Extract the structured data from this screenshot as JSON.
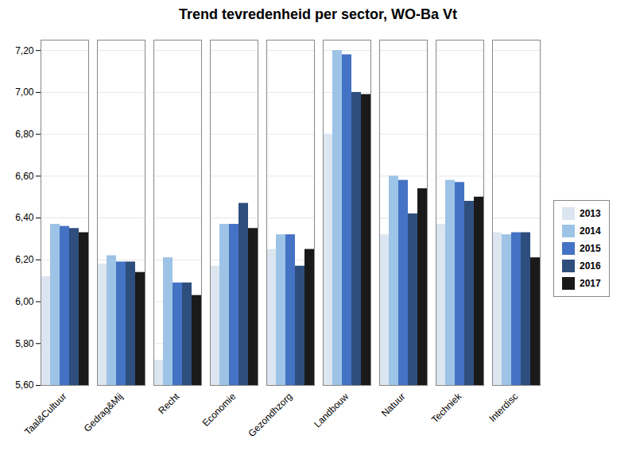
{
  "chart_data": {
    "type": "bar",
    "title": "Trend tevredenheid per sector, WO-Ba Vt",
    "categories": [
      "Taal&Cultuur",
      "Gedrag&Mij",
      "Recht",
      "Economie",
      "Gezondhzorg",
      "Landbouw",
      "Natuur",
      "Techniek",
      "Interdisc"
    ],
    "series": [
      {
        "name": "2013",
        "color": "#dce6f1",
        "values": [
          6.12,
          6.18,
          5.72,
          6.17,
          6.25,
          6.8,
          6.32,
          6.37,
          6.33
        ]
      },
      {
        "name": "2014",
        "color": "#9dc3e6",
        "values": [
          6.37,
          6.22,
          6.21,
          6.37,
          6.32,
          7.2,
          6.6,
          6.58,
          6.32
        ]
      },
      {
        "name": "2015",
        "color": "#4472c4",
        "values": [
          6.36,
          6.19,
          6.09,
          6.37,
          6.32,
          7.18,
          6.58,
          6.57,
          6.33
        ]
      },
      {
        "name": "2016",
        "color": "#2e4e7e",
        "values": [
          6.35,
          6.19,
          6.09,
          6.47,
          6.17,
          7.0,
          6.42,
          6.48,
          6.33
        ]
      },
      {
        "name": "2017",
        "color": "#1a1a1a",
        "values": [
          6.33,
          6.14,
          6.03,
          6.35,
          6.25,
          6.99,
          6.54,
          6.5,
          6.21
        ]
      }
    ],
    "ylim": [
      5.6,
      7.25
    ],
    "yticks": [
      {
        "value": 5.6,
        "label": "5,60"
      },
      {
        "value": 5.8,
        "label": "5,80"
      },
      {
        "value": 6.0,
        "label": "6,00"
      },
      {
        "value": 6.2,
        "label": "6,20"
      },
      {
        "value": 6.4,
        "label": "6,40"
      },
      {
        "value": 6.6,
        "label": "6,60"
      },
      {
        "value": 6.8,
        "label": "6,80"
      },
      {
        "value": 7.0,
        "label": "7,00"
      },
      {
        "value": 7.2,
        "label": "7,20"
      }
    ],
    "grid": true,
    "legend": "right"
  }
}
